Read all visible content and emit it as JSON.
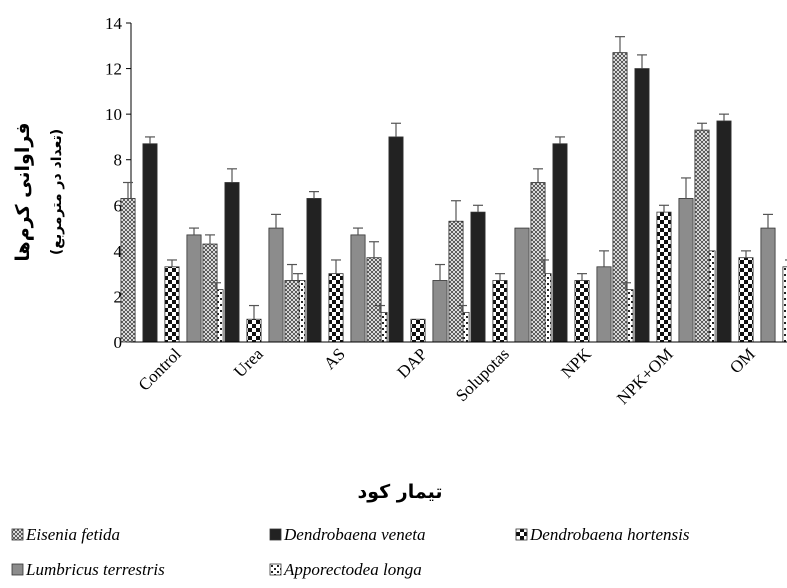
{
  "chart_data": {
    "type": "bar",
    "categories": [
      "Control",
      "Urea",
      "AS",
      "DAP",
      "Solupotas",
      "NPK",
      "NPK+OM",
      "OM"
    ],
    "series": [
      {
        "name": "Eisenia fetida",
        "values": [
          6.3,
          4.3,
          2.7,
          3.7,
          5.3,
          7.0,
          12.7,
          9.3
        ],
        "errors": [
          0.7,
          0.4,
          0.7,
          0.7,
          0.9,
          0.6,
          0.7,
          0.3
        ]
      },
      {
        "name": "Dendrobaena veneta",
        "values": [
          8.7,
          7.0,
          6.3,
          9.0,
          5.7,
          8.7,
          12.0,
          9.7
        ],
        "errors": [
          0.3,
          0.6,
          0.3,
          0.6,
          0.3,
          0.3,
          0.6,
          0.3
        ]
      },
      {
        "name": "Dendrobaena hortensis",
        "values": [
          3.3,
          1.0,
          3.0,
          1.0,
          2.7,
          2.7,
          5.7,
          3.7
        ],
        "errors": [
          0.3,
          0.6,
          0.6,
          0.0,
          0.3,
          0.3,
          0.3,
          0.3
        ]
      },
      {
        "name": "Lumbricus terrestris",
        "values": [
          4.7,
          5.0,
          4.7,
          2.7,
          5.0,
          3.3,
          6.3,
          5.0
        ],
        "errors": [
          0.3,
          0.6,
          0.3,
          0.7,
          0.0,
          0.7,
          0.9,
          0.6
        ]
      },
      {
        "name": "Apporectodea longa",
        "values": [
          2.3,
          2.7,
          1.3,
          1.3,
          3.0,
          2.3,
          4.0,
          3.3
        ],
        "errors": [
          0.3,
          0.3,
          0.3,
          0.3,
          0.6,
          0.3,
          0.0,
          0.3
        ]
      }
    ],
    "ylim": [
      0,
      14
    ],
    "yticks": [
      0,
      2,
      4,
      6,
      8,
      10,
      12,
      14
    ],
    "ylabel": "فراوانی کرم‌ها",
    "ylabel_sub": "(تعداد در مترمربع)",
    "xlabel": "تیمار کود",
    "legend_position": "bottom",
    "grid": false,
    "colors": {
      "eisenia": "#ffffff",
      "veneta": "#222222",
      "hortensis": "#111111",
      "lumbricus": "#8c8c8c",
      "longa": "#ffffff",
      "error_bar": "#555555"
    }
  }
}
